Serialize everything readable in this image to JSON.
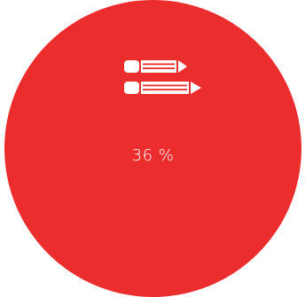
{
  "stat": {
    "value_label": "36 %",
    "fraction": 0.36,
    "icon": "pencils-icon"
  },
  "colors": {
    "circle": "#ec2d2d",
    "foreground": "#ffffff",
    "background": "#ffffff"
  }
}
